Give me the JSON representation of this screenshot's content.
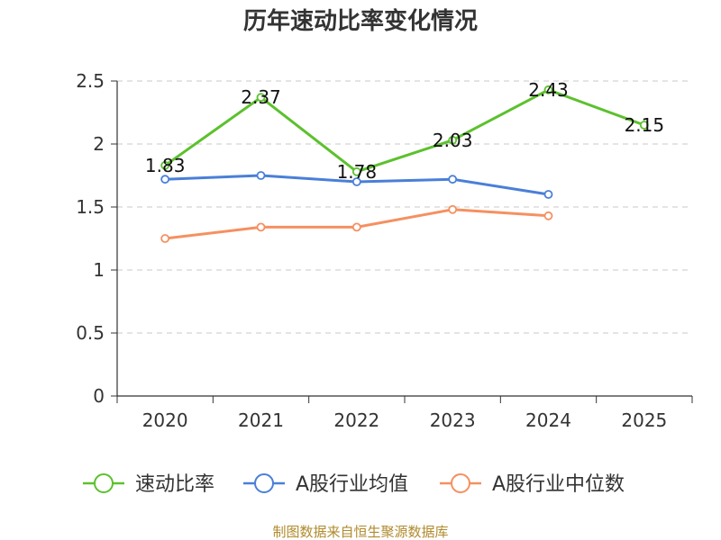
{
  "chart_data": {
    "type": "line",
    "title": "历年速动比率变化情况",
    "categories": [
      "2020",
      "2021",
      "2022",
      "2023",
      "2024",
      "2025"
    ],
    "ylim": [
      0,
      2.5
    ],
    "yticks": [
      "0",
      "0.5",
      "1",
      "1.5",
      "2",
      "2.5"
    ],
    "grid": true,
    "legend_position": "bottom",
    "series": [
      {
        "name": "速动比率",
        "color": "#5cc12d",
        "values": [
          1.83,
          2.37,
          1.78,
          2.03,
          2.43,
          2.15
        ],
        "labels": [
          "1.83",
          "2.37",
          "1.78",
          "2.03",
          "2.43",
          "2.15"
        ]
      },
      {
        "name": "A股行业均值",
        "color": "#4a7fd8",
        "values": [
          1.72,
          1.75,
          1.7,
          1.72,
          1.6,
          null
        ]
      },
      {
        "name": "A股行业中位数",
        "color": "#f59061",
        "values": [
          1.25,
          1.34,
          1.34,
          1.48,
          1.43,
          null
        ]
      }
    ],
    "source": "制图数据来自恒生聚源数据库"
  }
}
